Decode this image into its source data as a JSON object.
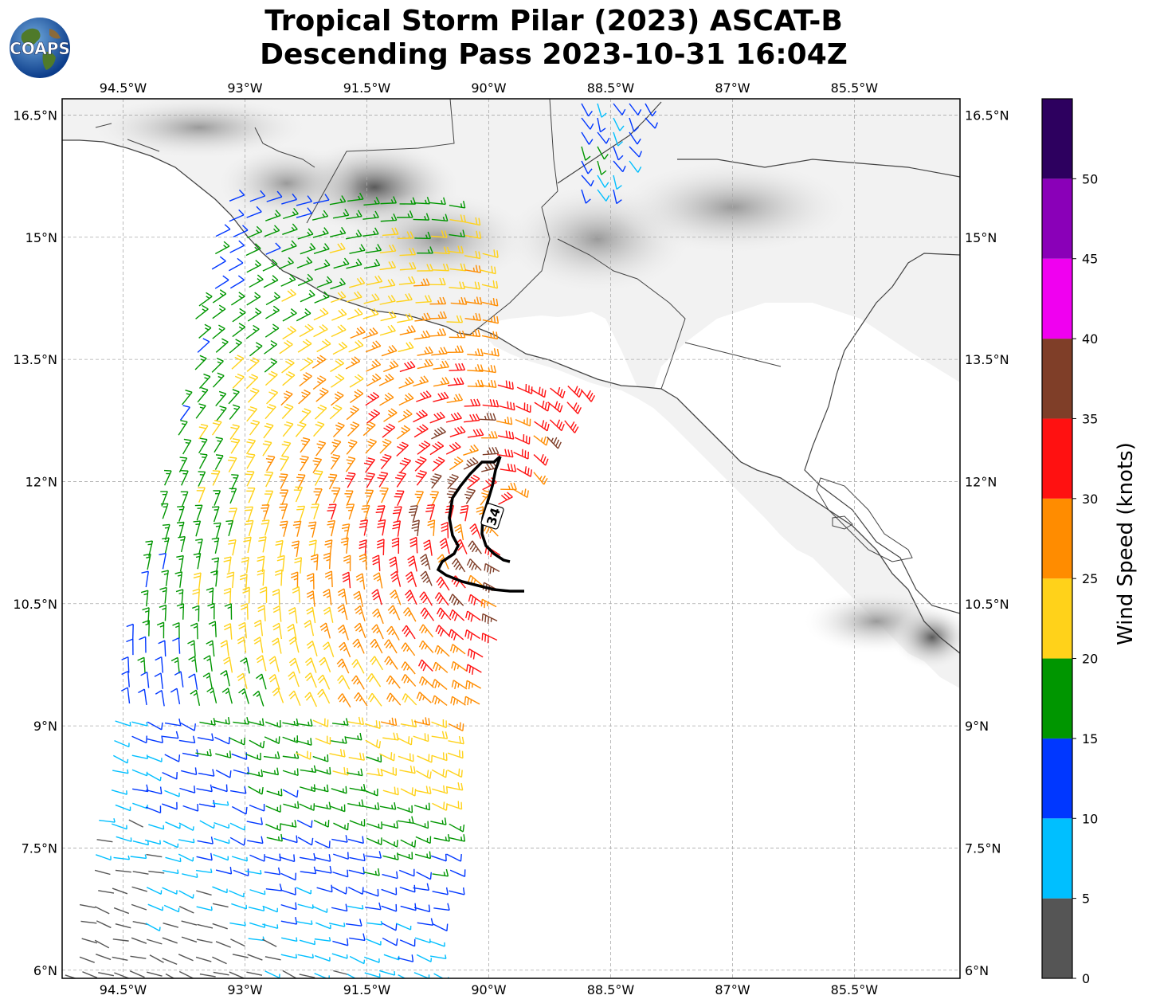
{
  "title": {
    "line1": "Tropical Storm Pilar (2023) ASCAT-B",
    "line2": "Descending Pass 2023-10-31 16:04Z"
  },
  "logo": {
    "text": "COAPS"
  },
  "axes": {
    "lon_labels": [
      "94.5°W",
      "93°W",
      "91.5°W",
      "90°W",
      "88.5°W",
      "87°W",
      "85.5°W"
    ],
    "lon_values": [
      -94.5,
      -93,
      -91.5,
      -90,
      -88.5,
      -87,
      -85.5
    ],
    "lat_labels": [
      "16.5°N",
      "15°N",
      "13.5°N",
      "12°N",
      "10.5°N",
      "9°N",
      "7.5°N",
      "6°N"
    ],
    "lat_values": [
      16.5,
      15,
      13.5,
      12,
      10.5,
      9,
      7.5,
      6
    ],
    "lon_range": [
      -95.25,
      -84.2
    ],
    "lat_range": [
      5.9,
      16.7
    ],
    "grid": true
  },
  "contour": {
    "label": "34",
    "units": "knots"
  },
  "colorbar": {
    "title": "Wind Speed (knots)",
    "tick_labels": [
      "0",
      "5",
      "10",
      "15",
      "20",
      "25",
      "30",
      "35",
      "40",
      "45",
      "50"
    ],
    "bins": [
      {
        "from": 0,
        "to": 5,
        "color": "#555555"
      },
      {
        "from": 5,
        "to": 10,
        "color": "#00bfff"
      },
      {
        "from": 10,
        "to": 15,
        "color": "#0037ff"
      },
      {
        "from": 15,
        "to": 20,
        "color": "#009600"
      },
      {
        "from": 20,
        "to": 25,
        "color": "#ffd21a"
      },
      {
        "from": 25,
        "to": 30,
        "color": "#ff8c00"
      },
      {
        "from": 30,
        "to": 35,
        "color": "#ff1111"
      },
      {
        "from": 35,
        "to": 40,
        "color": "#7f3e28"
      },
      {
        "from": 40,
        "to": 45,
        "color": "#f000f0"
      },
      {
        "from": 45,
        "to": 50,
        "color": "#8a00b8"
      },
      {
        "from": 50,
        "to": 55,
        "color": "#2d005f"
      }
    ]
  },
  "storm": {
    "center_lon": -89.75,
    "center_lat": 11.6
  },
  "colors": {
    "land": "#f2f2f2",
    "coast": "#444444",
    "grid": "#aaaaaa"
  }
}
